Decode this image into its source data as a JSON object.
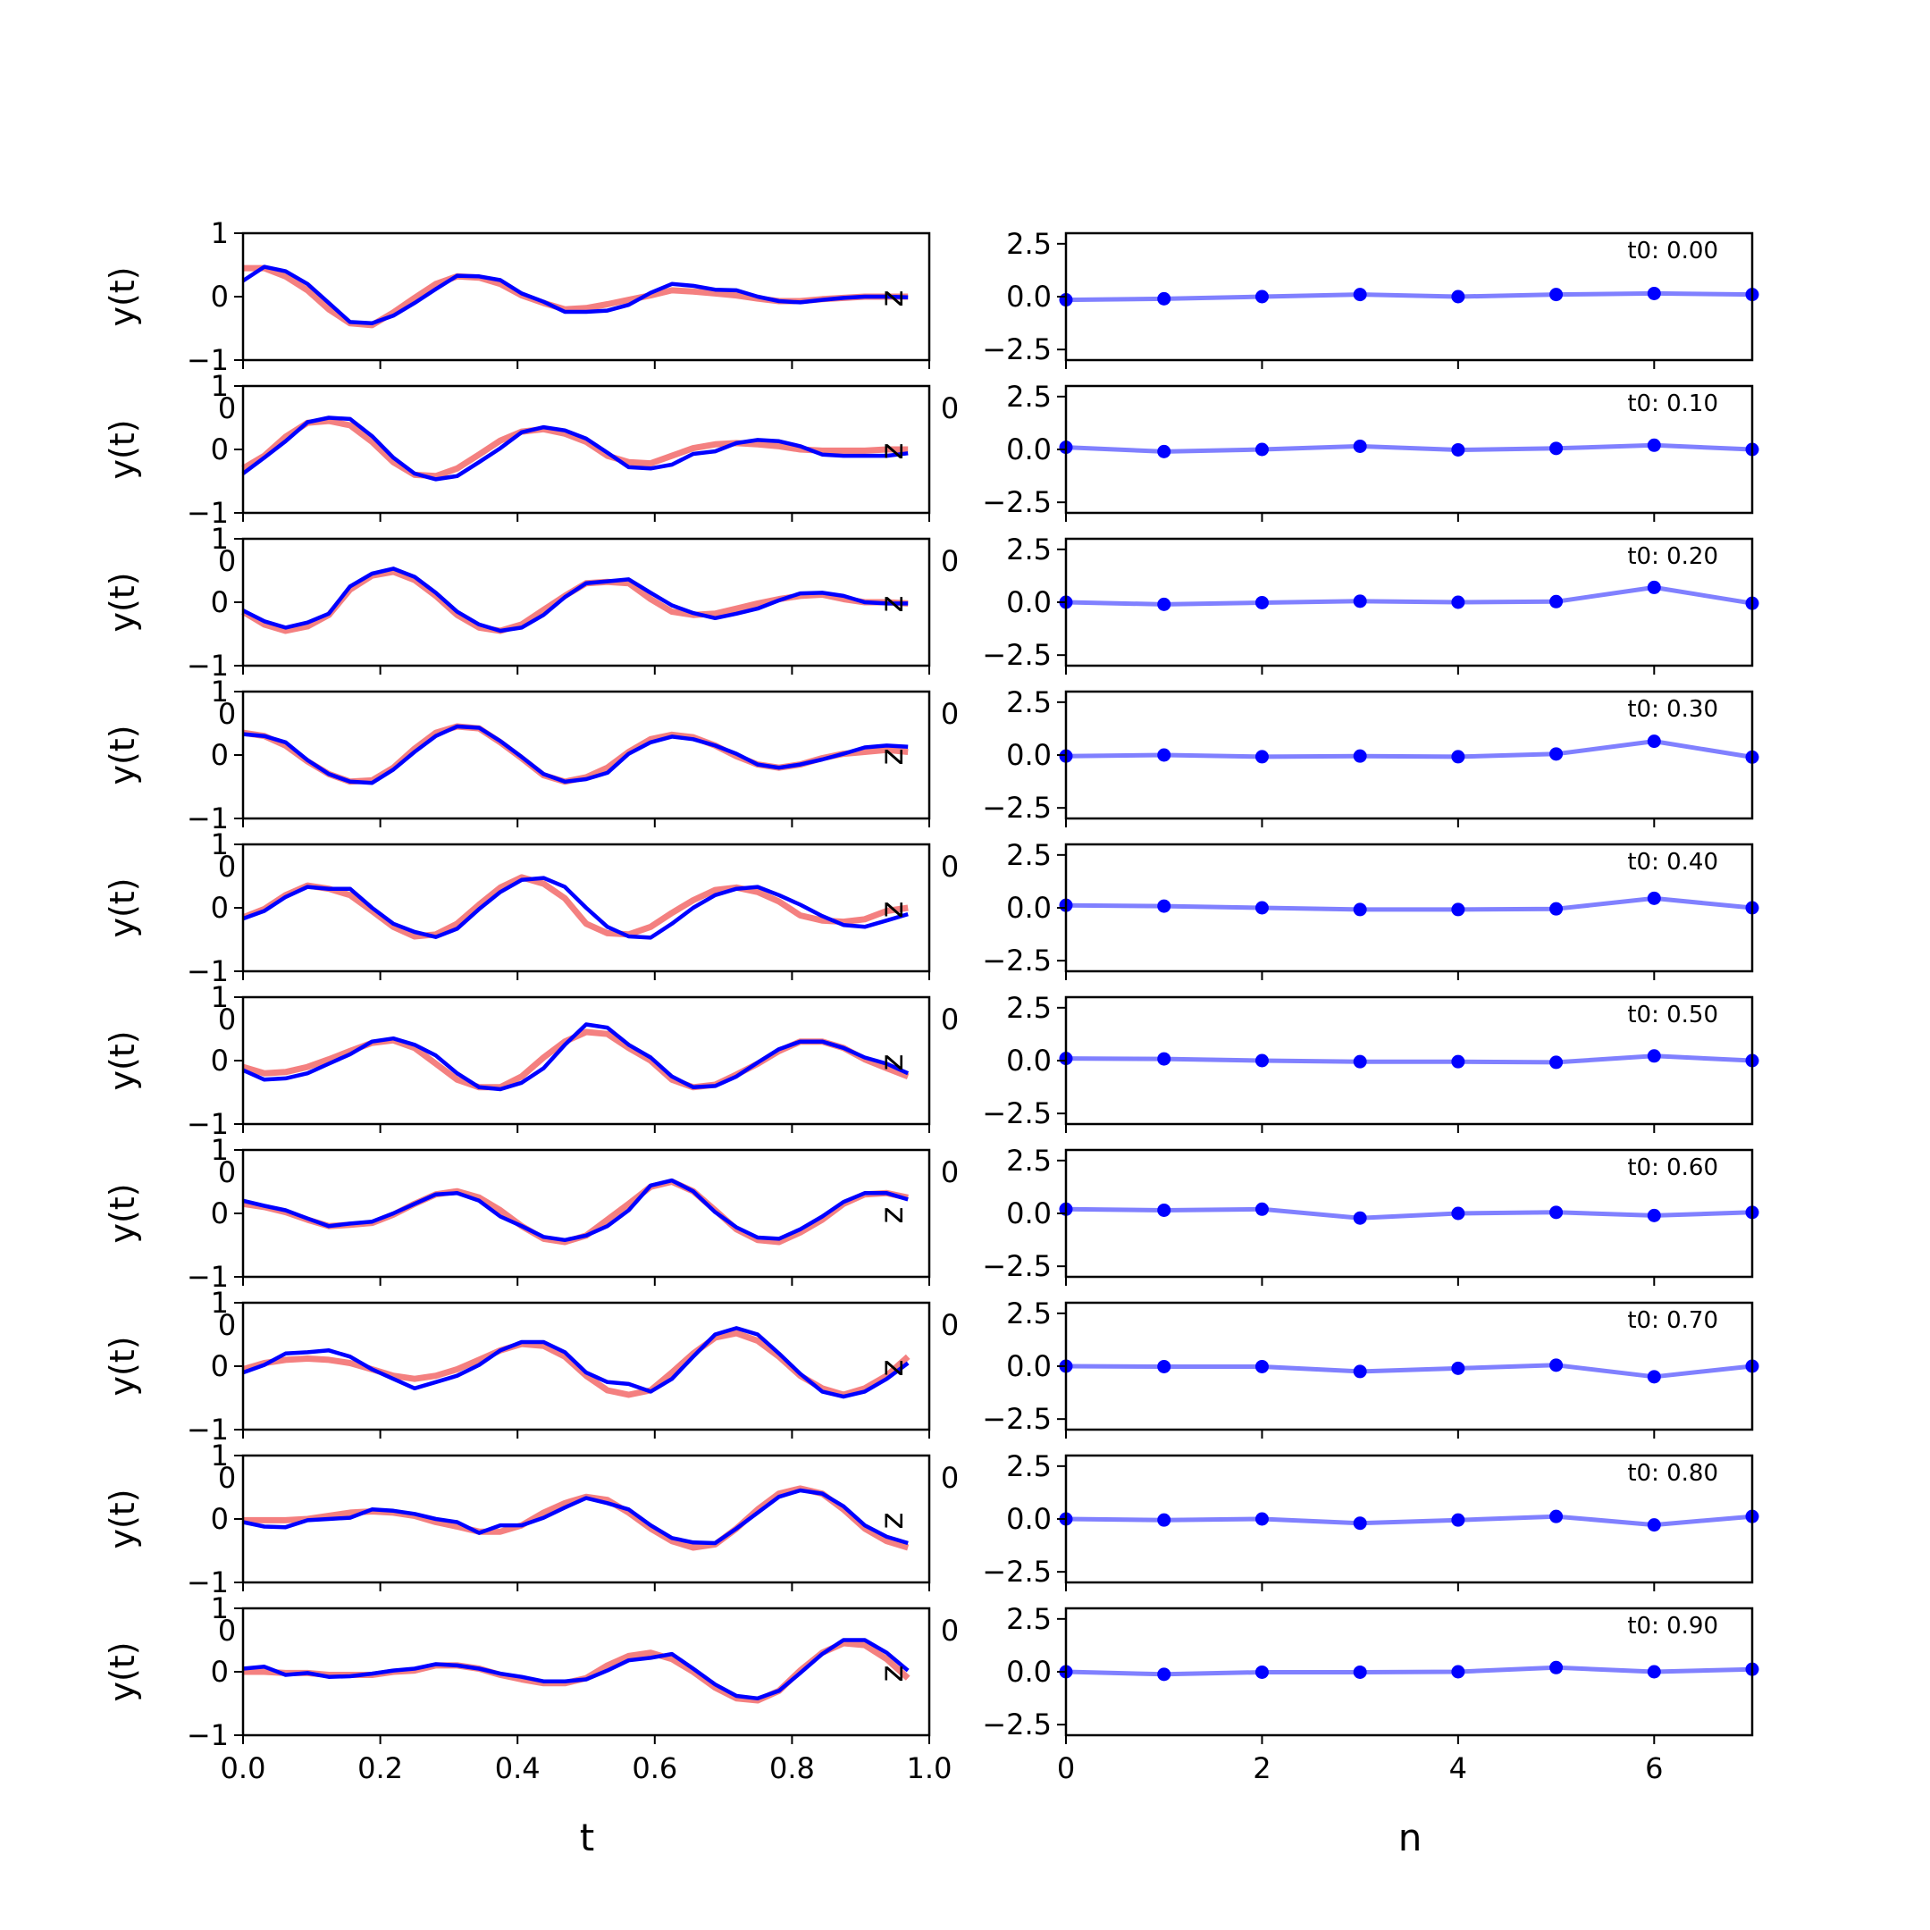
{
  "figure": {
    "left_xlabel": "t",
    "right_xlabel": "n",
    "left_ylabel": "y(t)",
    "left_side_label": "z",
    "left_yticks": [
      "−1",
      "0",
      "1"
    ],
    "right_yticks": [
      "−2.5",
      "0.0",
      "2.5"
    ],
    "left_xticks": [
      "0.0",
      "0.2",
      "0.4",
      "0.6",
      "0.8",
      "1.0"
    ],
    "right_xticks": [
      "0",
      "2",
      "4",
      "6"
    ],
    "overlap_glyph_left": "0",
    "overlap_glyph_right": "0"
  },
  "colors": {
    "target_line": "#f48080",
    "prediction_line": "#0000ff",
    "coeff_line": "#8080ff",
    "coeff_marker": "#0000ff"
  },
  "chart_data": [
    {
      "type": "line",
      "title": "",
      "xlabel": "t",
      "ylabel": "y(t)",
      "xlim": [
        0,
        1
      ],
      "ylim": [
        -1,
        1
      ],
      "x": [
        0.0,
        0.031,
        0.062,
        0.094,
        0.125,
        0.156,
        0.188,
        0.219,
        0.25,
        0.281,
        0.312,
        0.344,
        0.375,
        0.406,
        0.438,
        0.469,
        0.5,
        0.531,
        0.562,
        0.594,
        0.625,
        0.656,
        0.688,
        0.719,
        0.75,
        0.781,
        0.812,
        0.844,
        0.875,
        0.906,
        0.938,
        0.969
      ],
      "panels": [
        {
          "target": [
            0.45,
            0.45,
            0.32,
            0.1,
            -0.2,
            -0.42,
            -0.45,
            -0.25,
            -0.02,
            0.2,
            0.32,
            0.3,
            0.2,
            0.02,
            -0.1,
            -0.2,
            -0.18,
            -0.12,
            -0.05,
            0.02,
            0.1,
            0.08,
            0.05,
            0.02,
            -0.03,
            -0.07,
            -0.07,
            -0.04,
            -0.02,
            0.0,
            0.0,
            0.0
          ],
          "prediction": [
            0.25,
            0.47,
            0.4,
            0.2,
            -0.1,
            -0.4,
            -0.42,
            -0.3,
            -0.1,
            0.12,
            0.33,
            0.32,
            0.26,
            0.05,
            -0.08,
            -0.24,
            -0.24,
            -0.22,
            -0.13,
            0.06,
            0.2,
            0.17,
            0.11,
            0.1,
            0.0,
            -0.07,
            -0.09,
            -0.05,
            -0.02,
            0.0,
            0.0,
            -0.01
          ]
        },
        {
          "target": [
            -0.3,
            -0.1,
            0.2,
            0.42,
            0.45,
            0.38,
            0.12,
            -0.2,
            -0.4,
            -0.42,
            -0.3,
            -0.08,
            0.14,
            0.28,
            0.32,
            0.25,
            0.12,
            -0.1,
            -0.2,
            -0.22,
            -0.1,
            0.02,
            0.08,
            0.1,
            0.08,
            0.05,
            0.0,
            -0.02,
            -0.02,
            -0.02,
            0.0,
            0.0
          ],
          "prediction": [
            -0.38,
            -0.13,
            0.13,
            0.43,
            0.5,
            0.48,
            0.21,
            -0.13,
            -0.38,
            -0.47,
            -0.42,
            -0.2,
            0.02,
            0.27,
            0.35,
            0.3,
            0.17,
            -0.05,
            -0.28,
            -0.3,
            -0.24,
            -0.07,
            -0.03,
            0.1,
            0.15,
            0.13,
            0.05,
            -0.08,
            -0.1,
            -0.1,
            -0.1,
            -0.06
          ]
        },
        {
          "target": [
            -0.15,
            -0.35,
            -0.45,
            -0.38,
            -0.2,
            0.2,
            0.42,
            0.48,
            0.35,
            0.1,
            -0.2,
            -0.4,
            -0.45,
            -0.35,
            -0.12,
            0.1,
            0.3,
            0.32,
            0.3,
            0.05,
            -0.15,
            -0.2,
            -0.18,
            -0.1,
            -0.02,
            0.05,
            0.1,
            0.12,
            0.05,
            0.0,
            0.0,
            -0.02
          ],
          "prediction": [
            -0.13,
            -0.3,
            -0.4,
            -0.32,
            -0.18,
            0.25,
            0.45,
            0.53,
            0.4,
            0.15,
            -0.15,
            -0.35,
            -0.45,
            -0.4,
            -0.2,
            0.08,
            0.3,
            0.33,
            0.36,
            0.15,
            -0.05,
            -0.17,
            -0.25,
            -0.18,
            -0.1,
            0.03,
            0.14,
            0.15,
            0.1,
            0.0,
            -0.02,
            -0.02
          ]
        },
        {
          "target": [
            0.35,
            0.3,
            0.15,
            -0.1,
            -0.3,
            -0.42,
            -0.4,
            -0.2,
            0.1,
            0.35,
            0.45,
            0.42,
            0.2,
            -0.05,
            -0.32,
            -0.42,
            -0.35,
            -0.2,
            0.05,
            0.25,
            0.32,
            0.28,
            0.15,
            -0.02,
            -0.15,
            -0.2,
            -0.15,
            -0.05,
            0.02,
            0.05,
            0.08,
            0.05
          ],
          "prediction": [
            0.33,
            0.3,
            0.2,
            -0.08,
            -0.3,
            -0.42,
            -0.44,
            -0.23,
            0.05,
            0.3,
            0.45,
            0.43,
            0.22,
            -0.03,
            -0.3,
            -0.42,
            -0.38,
            -0.28,
            0.02,
            0.2,
            0.29,
            0.25,
            0.15,
            0.02,
            -0.15,
            -0.2,
            -0.15,
            -0.07,
            0.02,
            0.12,
            0.15,
            0.13
          ]
        },
        {
          "target": [
            -0.15,
            -0.02,
            0.2,
            0.35,
            0.3,
            0.2,
            -0.05,
            -0.3,
            -0.45,
            -0.42,
            -0.25,
            0.05,
            0.32,
            0.48,
            0.38,
            0.15,
            -0.25,
            -0.4,
            -0.42,
            -0.3,
            -0.08,
            0.12,
            0.28,
            0.32,
            0.25,
            0.1,
            -0.12,
            -0.2,
            -0.22,
            -0.18,
            -0.05,
            0.0
          ],
          "prediction": [
            -0.17,
            -0.05,
            0.17,
            0.33,
            0.3,
            0.3,
            0.0,
            -0.25,
            -0.38,
            -0.46,
            -0.33,
            -0.02,
            0.25,
            0.44,
            0.47,
            0.33,
            0.0,
            -0.3,
            -0.45,
            -0.47,
            -0.25,
            0.0,
            0.2,
            0.3,
            0.33,
            0.2,
            0.05,
            -0.13,
            -0.27,
            -0.3,
            -0.2,
            -0.1
          ]
        },
        {
          "target": [
            -0.1,
            -0.2,
            -0.18,
            -0.1,
            0.02,
            0.15,
            0.28,
            0.32,
            0.2,
            -0.05,
            -0.3,
            -0.42,
            -0.42,
            -0.25,
            0.05,
            0.3,
            0.45,
            0.42,
            0.2,
            0.0,
            -0.3,
            -0.42,
            -0.38,
            -0.22,
            -0.05,
            0.15,
            0.3,
            0.3,
            0.2,
            0.02,
            -0.12,
            -0.25
          ],
          "prediction": [
            -0.15,
            -0.3,
            -0.28,
            -0.2,
            -0.05,
            0.1,
            0.3,
            0.35,
            0.25,
            0.08,
            -0.2,
            -0.42,
            -0.45,
            -0.35,
            -0.12,
            0.25,
            0.57,
            0.52,
            0.25,
            0.05,
            -0.25,
            -0.42,
            -0.4,
            -0.25,
            -0.03,
            0.18,
            0.3,
            0.3,
            0.2,
            0.05,
            -0.05,
            -0.2
          ]
        },
        {
          "target": [
            0.15,
            0.1,
            0.02,
            -0.1,
            -0.2,
            -0.18,
            -0.15,
            -0.02,
            0.15,
            0.3,
            0.35,
            0.25,
            0.05,
            -0.2,
            -0.4,
            -0.45,
            -0.35,
            -0.1,
            0.15,
            0.42,
            0.5,
            0.35,
            0.05,
            -0.25,
            -0.42,
            -0.45,
            -0.3,
            -0.1,
            0.15,
            0.3,
            0.32,
            0.25
          ],
          "prediction": [
            0.2,
            0.12,
            0.05,
            -0.08,
            -0.2,
            -0.16,
            -0.13,
            0.0,
            0.15,
            0.3,
            0.32,
            0.2,
            -0.05,
            -0.2,
            -0.37,
            -0.42,
            -0.35,
            -0.2,
            0.05,
            0.44,
            0.52,
            0.35,
            0.02,
            -0.22,
            -0.38,
            -0.4,
            -0.25,
            -0.05,
            0.18,
            0.32,
            0.32,
            0.22
          ]
        },
        {
          "target": [
            -0.05,
            0.05,
            0.1,
            0.12,
            0.1,
            0.05,
            -0.05,
            -0.15,
            -0.2,
            -0.15,
            -0.05,
            0.1,
            0.25,
            0.35,
            0.32,
            0.15,
            -0.15,
            -0.38,
            -0.45,
            -0.38,
            -0.1,
            0.2,
            0.45,
            0.52,
            0.4,
            0.15,
            -0.15,
            -0.35,
            -0.45,
            -0.35,
            -0.15,
            0.15
          ],
          "prediction": [
            -0.1,
            0.02,
            0.2,
            0.22,
            0.25,
            0.15,
            -0.05,
            -0.2,
            -0.35,
            -0.25,
            -0.15,
            0.02,
            0.25,
            0.38,
            0.38,
            0.22,
            -0.1,
            -0.25,
            -0.28,
            -0.4,
            -0.2,
            0.15,
            0.5,
            0.6,
            0.5,
            0.2,
            -0.12,
            -0.4,
            -0.48,
            -0.4,
            -0.2,
            0.05
          ]
        },
        {
          "target": [
            -0.02,
            -0.02,
            -0.02,
            0.0,
            0.05,
            0.1,
            0.12,
            0.1,
            0.05,
            -0.05,
            -0.12,
            -0.2,
            -0.2,
            -0.1,
            0.1,
            0.25,
            0.35,
            0.3,
            0.1,
            -0.15,
            -0.35,
            -0.45,
            -0.4,
            -0.15,
            0.15,
            0.4,
            0.48,
            0.4,
            0.15,
            -0.15,
            -0.35,
            -0.45
          ],
          "prediction": [
            -0.05,
            -0.12,
            -0.13,
            -0.02,
            0.0,
            0.02,
            0.15,
            0.13,
            0.08,
            0.0,
            -0.05,
            -0.22,
            -0.1,
            -0.1,
            0.02,
            0.18,
            0.33,
            0.25,
            0.15,
            -0.1,
            -0.3,
            -0.37,
            -0.38,
            -0.15,
            0.1,
            0.35,
            0.45,
            0.4,
            0.2,
            -0.1,
            -0.28,
            -0.38
          ]
        },
        {
          "target": [
            0.0,
            0.0,
            -0.02,
            -0.02,
            -0.05,
            -0.05,
            -0.05,
            0.0,
            0.02,
            0.1,
            0.1,
            0.05,
            -0.05,
            -0.12,
            -0.18,
            -0.18,
            -0.1,
            0.1,
            0.25,
            0.3,
            0.2,
            0.0,
            -0.25,
            -0.42,
            -0.45,
            -0.3,
            0.02,
            0.3,
            0.45,
            0.42,
            0.2,
            -0.1
          ],
          "prediction": [
            0.05,
            0.08,
            -0.05,
            -0.02,
            -0.08,
            -0.07,
            -0.03,
            0.02,
            0.05,
            0.12,
            0.1,
            0.05,
            -0.03,
            -0.08,
            -0.15,
            -0.15,
            -0.12,
            0.02,
            0.18,
            0.22,
            0.28,
            0.05,
            -0.2,
            -0.38,
            -0.42,
            -0.3,
            -0.02,
            0.28,
            0.5,
            0.5,
            0.3,
            0.02
          ]
        }
      ]
    },
    {
      "type": "line",
      "title": "",
      "xlabel": "n",
      "ylabel": "",
      "xlim": [
        0,
        7
      ],
      "ylim": [
        -3,
        3
      ],
      "x": [
        0,
        1,
        2,
        3,
        4,
        5,
        6,
        7
      ],
      "panels": [
        {
          "label": "t0: 0.00",
          "values": [
            -0.15,
            -0.1,
            0.0,
            0.1,
            0.0,
            0.1,
            0.15,
            0.1
          ]
        },
        {
          "label": "t0: 0.10",
          "values": [
            0.1,
            -0.1,
            0.0,
            0.15,
            -0.02,
            0.05,
            0.2,
            0.0
          ]
        },
        {
          "label": "t0: 0.20",
          "values": [
            0.0,
            -0.1,
            -0.02,
            0.05,
            0.0,
            0.03,
            0.7,
            -0.05
          ]
        },
        {
          "label": "t0: 0.30",
          "values": [
            -0.05,
            0.0,
            -0.08,
            -0.05,
            -0.08,
            0.05,
            0.65,
            -0.1
          ]
        },
        {
          "label": "t0: 0.40",
          "values": [
            0.12,
            0.08,
            0.0,
            -0.08,
            -0.08,
            -0.05,
            0.45,
            0.0
          ]
        },
        {
          "label": "t0: 0.50",
          "values": [
            0.1,
            0.08,
            0.0,
            -0.05,
            -0.05,
            -0.08,
            0.22,
            0.0
          ]
        },
        {
          "label": "t0: 0.60",
          "values": [
            0.2,
            0.15,
            0.2,
            -0.22,
            0.0,
            0.05,
            -0.1,
            0.05
          ]
        },
        {
          "label": "t0: 0.70",
          "values": [
            0.0,
            -0.02,
            -0.02,
            -0.25,
            -0.1,
            0.05,
            -0.5,
            0.0
          ]
        },
        {
          "label": "t0: 0.80",
          "values": [
            0.0,
            -0.05,
            0.0,
            -0.2,
            -0.05,
            0.12,
            -0.28,
            0.12
          ]
        },
        {
          "label": "t0: 0.90",
          "values": [
            0.0,
            -0.12,
            -0.02,
            -0.02,
            0.0,
            0.2,
            0.0,
            0.12
          ]
        }
      ]
    }
  ]
}
